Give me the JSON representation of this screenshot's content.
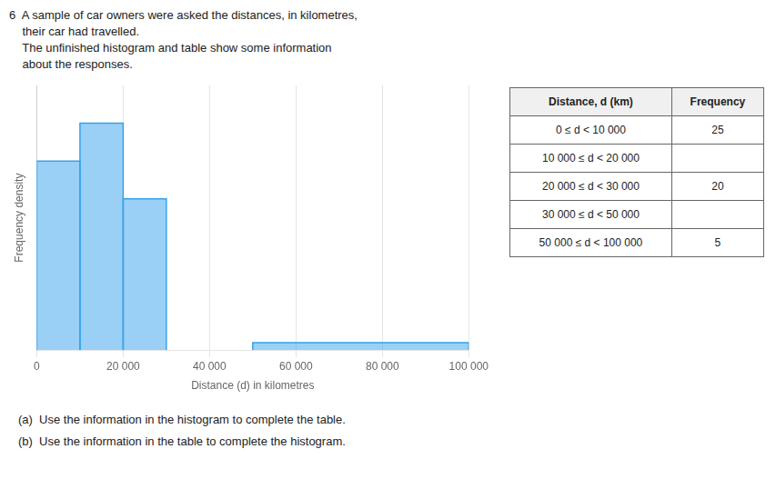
{
  "chart_data": {
    "type": "histogram",
    "title": [
      "6  A sample of car owners were asked the distances, in kilometres,",
      "    their car had travelled.",
      "    The unfinished histogram and table show some information",
      "    about the responses."
    ],
    "xlabel": "Distance (d) in kilometres",
    "ylabel": "Frequency density",
    "bins": [
      0,
      10000,
      20000,
      30000,
      50000,
      100000
    ],
    "values": [
      2.5,
      3.0,
      2.0,
      null,
      0.1
    ],
    "color": "#36a2eb",
    "xlim": [
      0,
      100000
    ],
    "ylim": [
      0,
      3.5
    ],
    "xticks": [
      0,
      {
        "value": 20000,
        "label": "20 000"
      },
      {
        "value": 40000,
        "label": "40 000"
      },
      {
        "value": 60000,
        "label": "60 000"
      },
      {
        "value": 80000,
        "label": "80 000"
      },
      {
        "value": 100000,
        "label": "100 000"
      }
    ],
    "grid": true,
    "tick_labels": "x",
    "table": {
      "columns": [
        "Distance, d (km)",
        "Frequency"
      ],
      "rows": [
        [
          "0 ≤ d < 10 000",
          25
        ],
        [
          "10 000 ≤ d < 20 000",
          null
        ],
        [
          "20 000 ≤ d < 30 000",
          20
        ],
        [
          "30 000 ≤ d < 50 000",
          null
        ],
        [
          "50 000 ≤ d < 100 000",
          5
        ]
      ]
    },
    "annotations": [
      "(a)  Use the information in the histogram to complete the table.",
      "(b)  Use the information in the table to complete the histogram."
    ]
  }
}
